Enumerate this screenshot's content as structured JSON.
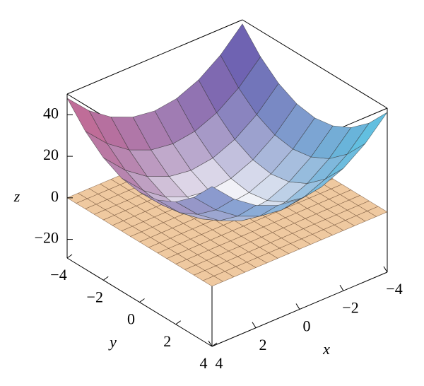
{
  "chart_data": {
    "type": "surface3d",
    "x": [
      -4,
      -3,
      -2,
      -1,
      0,
      1,
      2,
      3,
      4
    ],
    "y": [
      -4,
      -3,
      -2,
      -1,
      0,
      1,
      2,
      3,
      4
    ],
    "z": [
      [
        48,
        37.5,
        30,
        25.5,
        24,
        25.5,
        30,
        37.5,
        48
      ],
      [
        37.5,
        27,
        19.5,
        15,
        13.5,
        15,
        19.5,
        27,
        37.5
      ],
      [
        30,
        19.5,
        12,
        7.5,
        6,
        7.5,
        12,
        19.5,
        30
      ],
      [
        25.5,
        15,
        7.5,
        3,
        1.5,
        3,
        7.5,
        15,
        25.5
      ],
      [
        24,
        13.5,
        6,
        1.5,
        0,
        1.5,
        6,
        13.5,
        24
      ],
      [
        25.5,
        15,
        7.5,
        3,
        1.5,
        3,
        7.5,
        15,
        25.5
      ],
      [
        30,
        19.5,
        12,
        7.5,
        6,
        7.5,
        12,
        19.5,
        30
      ],
      [
        37.5,
        27,
        19.5,
        15,
        13.5,
        15,
        19.5,
        27,
        37.5
      ],
      [
        48,
        37.5,
        30,
        25.5,
        24,
        25.5,
        30,
        37.5,
        48
      ]
    ],
    "corner_colors": [
      "#c86a92",
      "#6a5bb0",
      "#5ec8e4",
      "#8a9ad0"
    ],
    "low_color": "#ffffff",
    "plane": {
      "z": 0,
      "color": "#efc9a0"
    },
    "xlim": [
      -4,
      4
    ],
    "ylim": [
      -4,
      4
    ],
    "zlim": [
      -29,
      50
    ],
    "xticks": [
      {
        "value": -4,
        "label": "−4"
      },
      {
        "value": -2,
        "label": "−2"
      },
      0,
      2,
      4
    ],
    "yticks": [
      {
        "value": -4,
        "label": "−4"
      },
      {
        "value": -2,
        "label": "−2"
      },
      0,
      2,
      4
    ],
    "zticks": [
      {
        "value": -20,
        "label": "−20"
      },
      0,
      20,
      40
    ],
    "xlabel": "x",
    "ylabel": "y",
    "zlabel": "z"
  }
}
